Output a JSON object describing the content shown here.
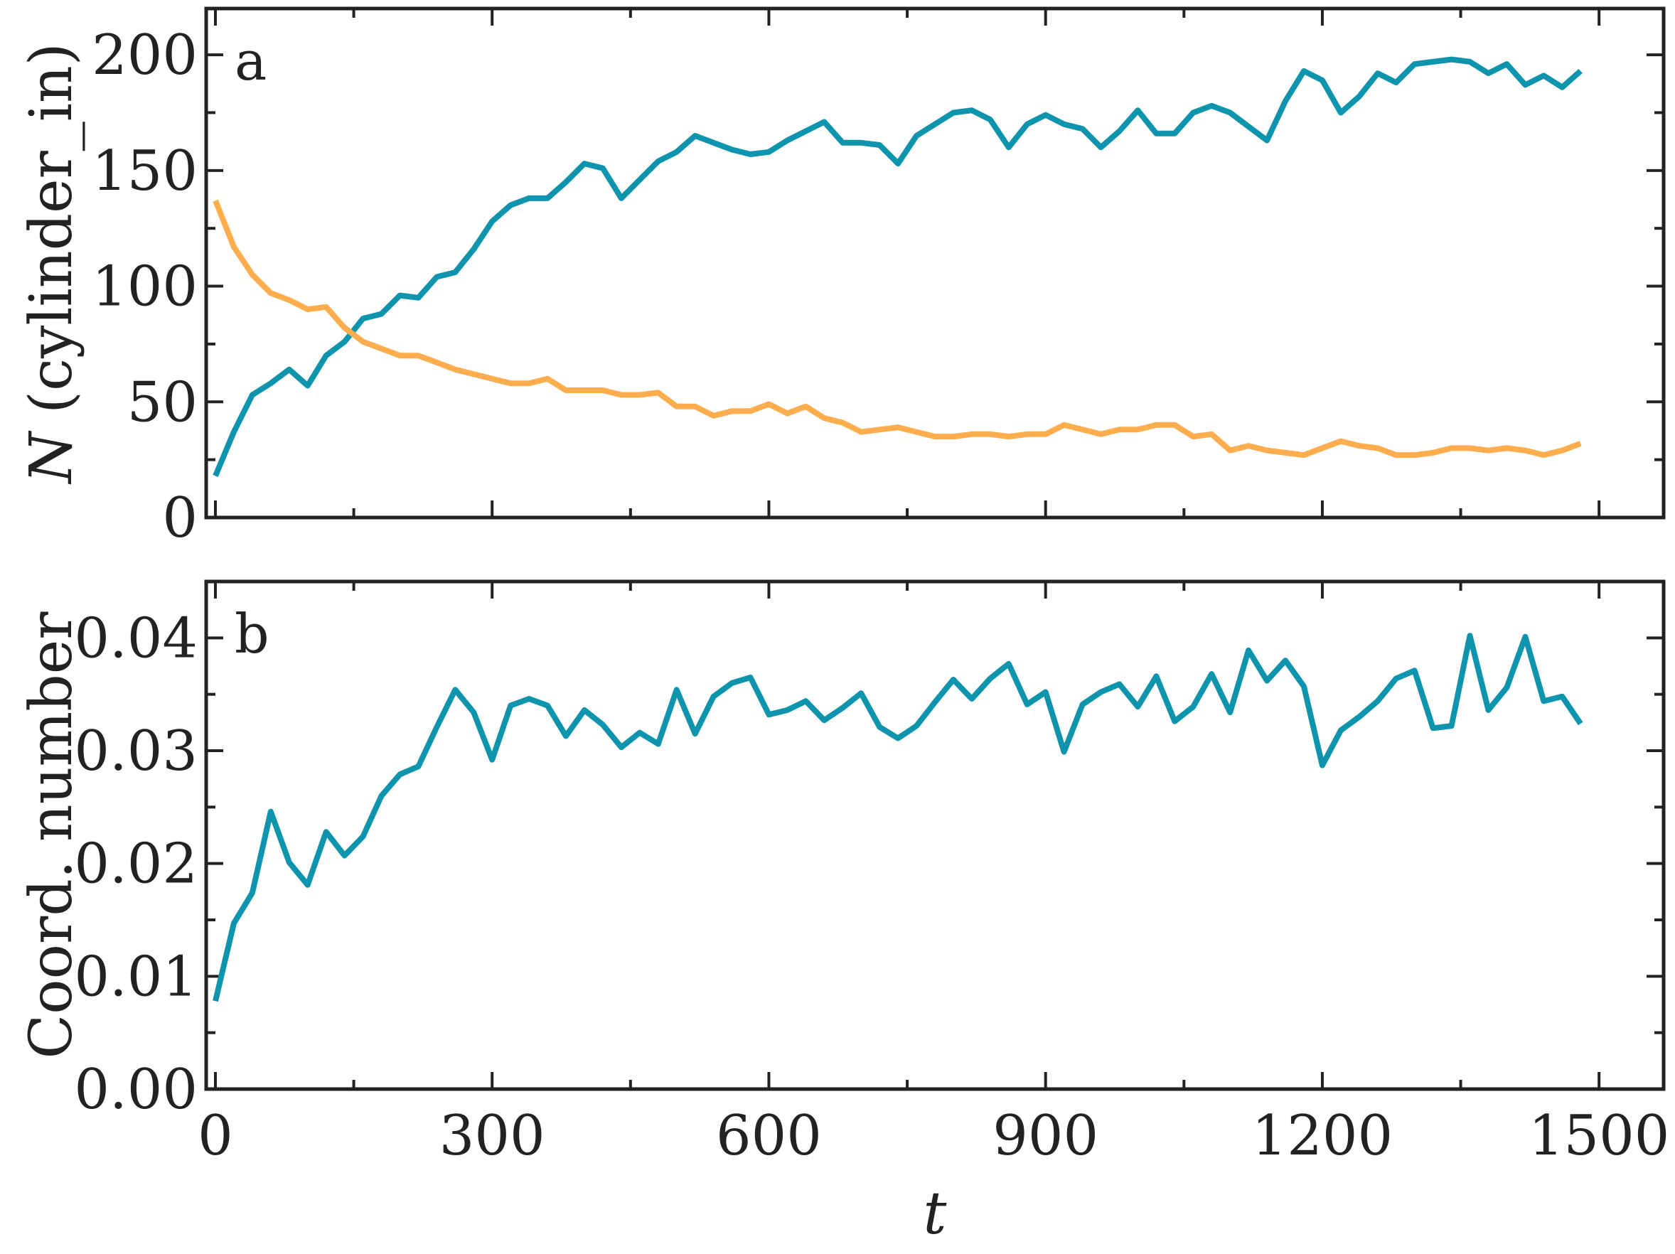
{
  "colors": {
    "teal": "#0f94ae",
    "orange": "#fdad4e",
    "axis": "#222222"
  },
  "chart_data": [
    {
      "type": "line",
      "panel_label": "a",
      "title": "",
      "xlabel": "",
      "ylabel_symbol": "N",
      "ylabel_rest": " (cylinder_in)",
      "xlim": [
        -10,
        1570
      ],
      "ylim": [
        0,
        220
      ],
      "xticks": [
        0,
        300,
        600,
        900,
        1200,
        1500
      ],
      "yticks": [
        0,
        50,
        100,
        150,
        200
      ],
      "ytick_labels": [
        "0",
        "50",
        "100",
        "150",
        "200"
      ],
      "x": [
        0,
        20,
        40,
        60,
        80,
        100,
        120,
        140,
        160,
        180,
        200,
        220,
        240,
        260,
        280,
        300,
        320,
        340,
        360,
        380,
        400,
        420,
        440,
        460,
        480,
        500,
        520,
        540,
        560,
        580,
        600,
        620,
        640,
        660,
        680,
        700,
        720,
        740,
        760,
        780,
        800,
        820,
        840,
        860,
        880,
        900,
        920,
        940,
        960,
        980,
        1000,
        1020,
        1040,
        1060,
        1080,
        1100,
        1120,
        1140,
        1160,
        1180,
        1200,
        1220,
        1240,
        1260,
        1280,
        1300,
        1320,
        1340,
        1360,
        1380,
        1400,
        1420,
        1440,
        1460,
        1480
      ],
      "series": [
        {
          "color": "#0f94ae",
          "values": [
            18,
            37,
            53,
            58,
            64,
            57,
            70,
            76,
            86,
            88,
            96,
            95,
            104,
            106,
            116,
            128,
            135,
            138,
            138,
            145,
            153,
            151,
            138,
            146,
            154,
            158,
            165,
            162,
            159,
            157,
            158,
            163,
            167,
            171,
            162,
            162,
            161,
            153,
            165,
            170,
            175,
            176,
            172,
            160,
            170,
            174,
            170,
            168,
            160,
            167,
            176,
            166,
            166,
            175,
            178,
            175,
            169,
            163,
            180,
            193,
            189,
            175,
            182,
            192,
            188,
            196,
            197,
            198,
            197,
            192,
            196,
            187,
            191,
            186,
            193
          ]
        },
        {
          "color": "#fdad4e",
          "values": [
            137,
            117,
            105,
            97,
            94,
            90,
            91,
            82,
            76,
            73,
            70,
            70,
            67,
            64,
            62,
            60,
            58,
            58,
            60,
            55,
            55,
            55,
            53,
            53,
            54,
            48,
            48,
            44,
            46,
            46,
            49,
            45,
            48,
            43,
            41,
            37,
            38,
            39,
            37,
            35,
            35,
            36,
            36,
            35,
            36,
            36,
            40,
            38,
            36,
            38,
            38,
            40,
            40,
            35,
            36,
            29,
            31,
            29,
            28,
            27,
            30,
            33,
            31,
            30,
            27,
            27,
            28,
            30,
            30,
            29,
            30,
            29,
            27,
            29,
            32
          ]
        }
      ]
    },
    {
      "type": "line",
      "panel_label": "b",
      "title": "",
      "xlabel": "t",
      "ylabel": "Coord. number",
      "xlim": [
        -10,
        1570
      ],
      "ylim": [
        0,
        0.045
      ],
      "xticks": [
        0,
        300,
        600,
        900,
        1200,
        1500
      ],
      "xtick_labels": [
        "0",
        "300",
        "600",
        "900",
        "1200",
        "1500"
      ],
      "yticks": [
        0,
        0.01,
        0.02,
        0.03,
        0.04
      ],
      "ytick_labels": [
        "0.00",
        "0.01",
        "0.02",
        "0.03",
        "0.04"
      ],
      "x": [
        0,
        20,
        40,
        60,
        80,
        100,
        120,
        140,
        160,
        180,
        200,
        220,
        240,
        260,
        280,
        300,
        320,
        340,
        360,
        380,
        400,
        420,
        440,
        460,
        480,
        500,
        520,
        540,
        560,
        580,
        600,
        620,
        640,
        660,
        680,
        700,
        720,
        740,
        760,
        780,
        800,
        820,
        840,
        860,
        880,
        900,
        920,
        940,
        960,
        980,
        1000,
        1020,
        1040,
        1060,
        1080,
        1100,
        1120,
        1140,
        1160,
        1180,
        1200,
        1220,
        1240,
        1260,
        1280,
        1300,
        1320,
        1340,
        1360,
        1380,
        1400,
        1420,
        1440,
        1460,
        1480
      ],
      "series": [
        {
          "color": "#0f94ae",
          "values": [
            0.0078,
            0.0147,
            0.0174,
            0.0246,
            0.0201,
            0.0181,
            0.0228,
            0.0207,
            0.0224,
            0.026,
            0.0279,
            0.0286,
            0.0321,
            0.0354,
            0.0334,
            0.0292,
            0.034,
            0.0346,
            0.034,
            0.0313,
            0.0336,
            0.0323,
            0.0303,
            0.0316,
            0.0306,
            0.0354,
            0.0315,
            0.0348,
            0.036,
            0.0365,
            0.0332,
            0.0336,
            0.0344,
            0.0327,
            0.0338,
            0.0351,
            0.0321,
            0.0311,
            0.0322,
            0.0343,
            0.0363,
            0.0346,
            0.0364,
            0.0377,
            0.0341,
            0.0352,
            0.0299,
            0.0341,
            0.0352,
            0.0359,
            0.0339,
            0.0366,
            0.0326,
            0.0339,
            0.0368,
            0.0334,
            0.0389,
            0.0362,
            0.038,
            0.0357,
            0.0287,
            0.0318,
            0.033,
            0.0344,
            0.0364,
            0.0371,
            0.032,
            0.0322,
            0.0402,
            0.0336,
            0.0356,
            0.0401,
            0.0344,
            0.0348,
            0.0324
          ]
        }
      ]
    }
  ]
}
